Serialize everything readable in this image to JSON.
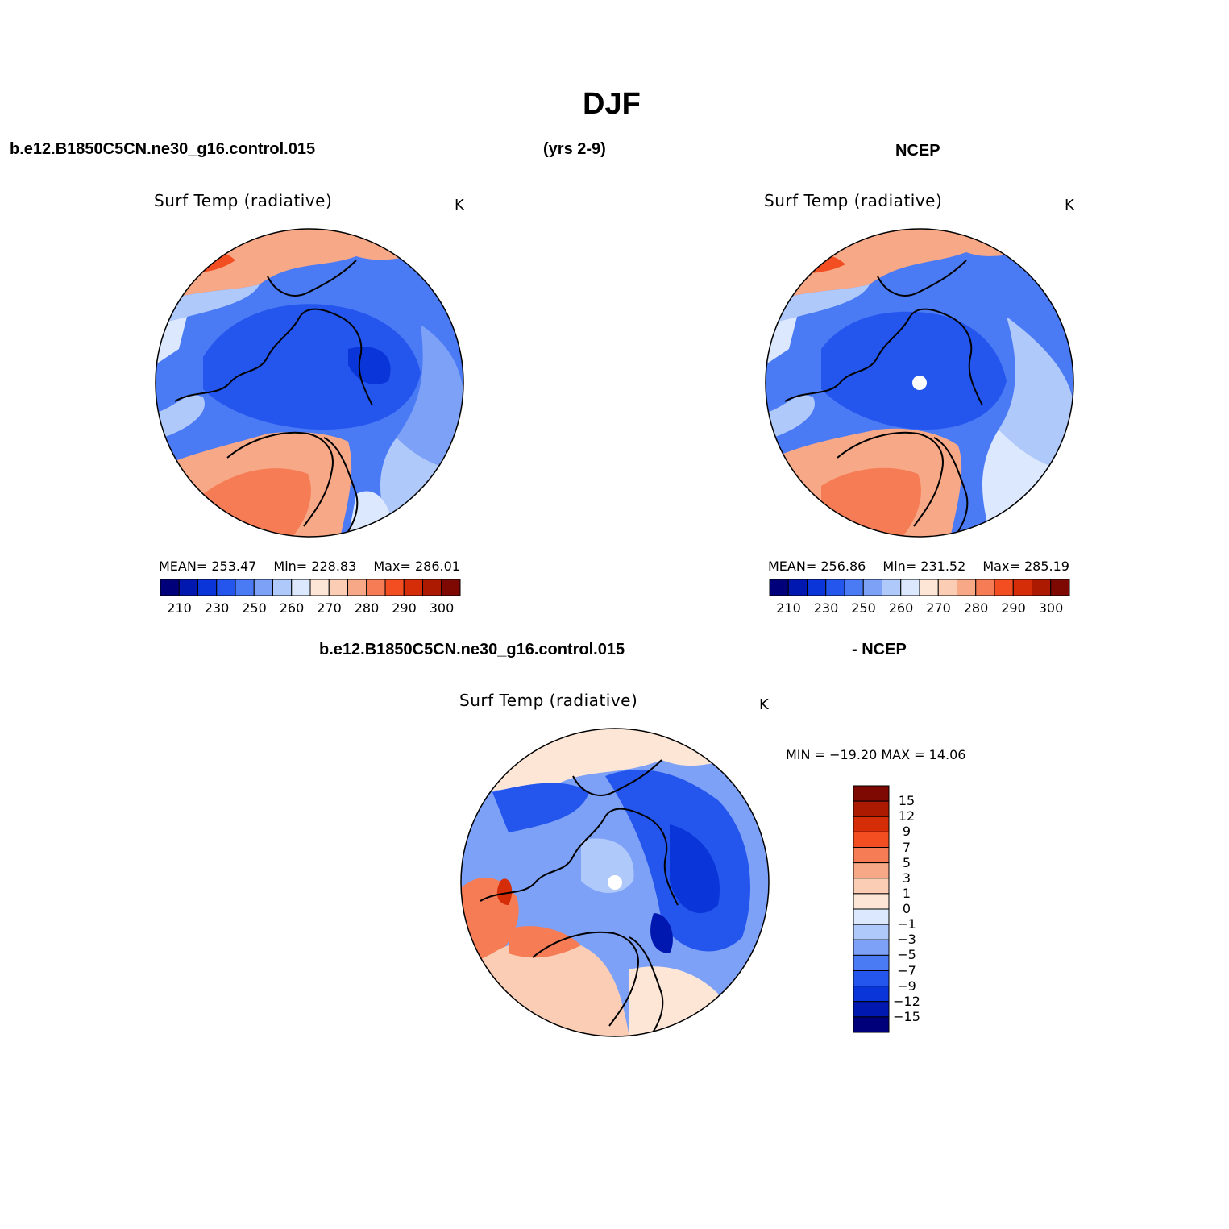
{
  "page_title": "DJF",
  "header": {
    "case_name": "b.e12.B1850C5CN.ne30_g16.control.015",
    "years": "(yrs 2-9)",
    "obs_name": "NCEP"
  },
  "diff_header": {
    "case_name": "b.e12.B1850C5CN.ne30_g16.control.015",
    "obs_name": "- NCEP"
  },
  "variable": "Surf Temp (radiative)",
  "units": "K",
  "panels": [
    {
      "id": "model",
      "stats": {
        "mean_label": "MEAN=",
        "mean": "253.47",
        "min_label": "Min=",
        "min": "228.83",
        "max_label": "Max=",
        "max": "286.01"
      }
    },
    {
      "id": "obs",
      "stats": {
        "mean_label": "MEAN=",
        "mean": "256.86",
        "min_label": "Min=",
        "min": "231.52",
        "max_label": "Max=",
        "max": "285.19"
      }
    },
    {
      "id": "diff",
      "stats_line": "MIN = −19.20 MAX =   14.06"
    }
  ],
  "colorbar_abs": {
    "colors": [
      "#00007a",
      "#0018b0",
      "#0a35d8",
      "#2456ee",
      "#4b7af5",
      "#7ea1f8",
      "#b0c9fb",
      "#dbe8fd",
      "#fde6d6",
      "#fbcdb5",
      "#f7a886",
      "#f57c55",
      "#f24e22",
      "#d52d08",
      "#ac1a02",
      "#7e0902"
    ],
    "labels": [
      "210",
      "230",
      "250",
      "260",
      "270",
      "280",
      "290",
      "300"
    ]
  },
  "colorbar_diff": {
    "colors": [
      "#7e0902",
      "#ac1a02",
      "#d52d08",
      "#f24e22",
      "#f57c55",
      "#f7a886",
      "#fbcdb5",
      "#fde6d6",
      "#dbe8fd",
      "#b0c9fb",
      "#7ea1f8",
      "#4b7af5",
      "#2456ee",
      "#0a35d8",
      "#0018b0",
      "#00007a"
    ],
    "labels": [
      "15",
      "12",
      "9",
      "7",
      "5",
      "3",
      "1",
      "0",
      "−1",
      "−3",
      "−5",
      "−7",
      "−9",
      "−12",
      "−15"
    ]
  }
}
